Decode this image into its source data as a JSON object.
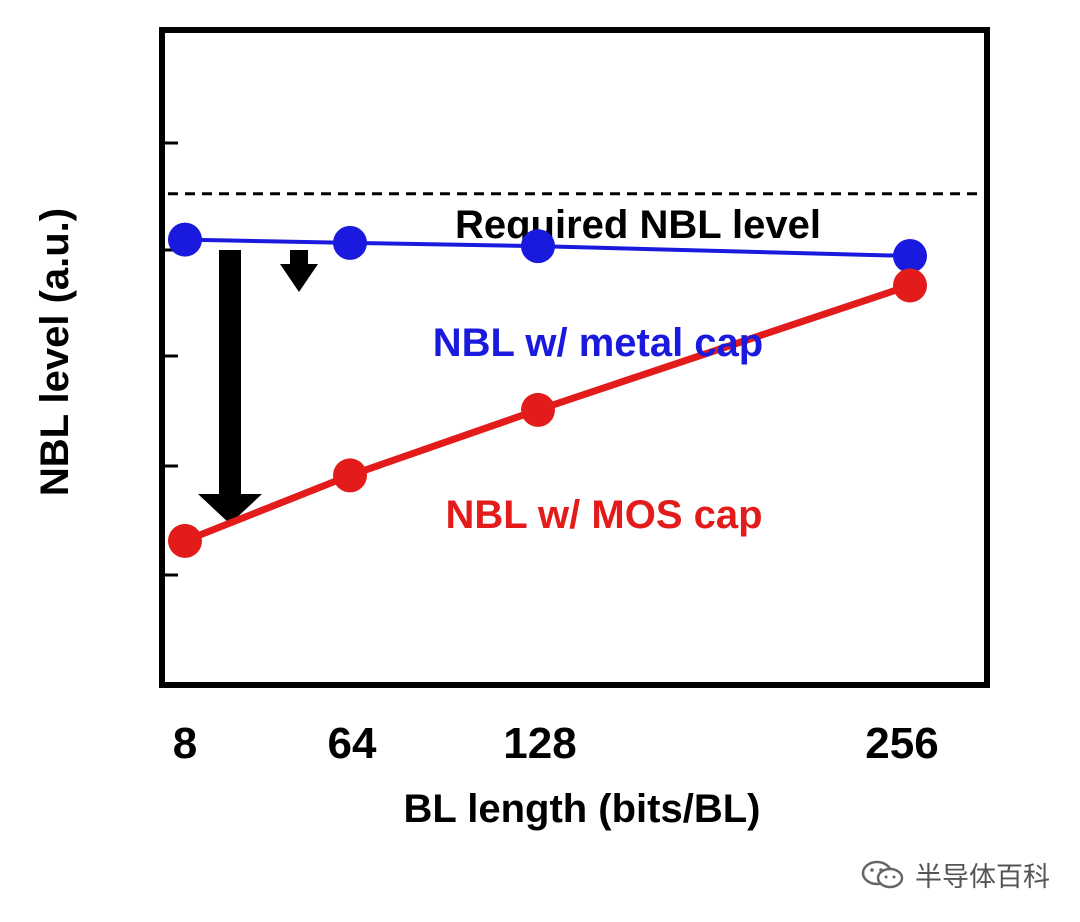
{
  "chart_data": {
    "type": "line",
    "title": "",
    "xlabel": "BL length (bits/BL)",
    "ylabel": "NBL level (a.u.)",
    "categories": [
      "8",
      "64",
      "128",
      "256"
    ],
    "x": [
      8,
      64,
      128,
      256
    ],
    "xlim": [
      8,
      256
    ],
    "ylim": [
      0,
      1
    ],
    "y_tick_labels_shown": false,
    "series": [
      {
        "name": "NBL w/ metal cap",
        "color": "#1a1adf",
        "values": [
          0.68,
          0.675,
          0.67,
          0.655
        ]
      },
      {
        "name": "NBL w/ MOS cap",
        "color": "#e31b1b",
        "values": [
          0.22,
          0.32,
          0.42,
          0.61
        ]
      }
    ],
    "reference_line": {
      "label": "Required NBL level",
      "value": 0.75,
      "style": "dashed",
      "color": "#000000"
    },
    "annotations": [
      {
        "kind": "down-arrow",
        "from_series": "reference",
        "to_series": "NBL w/ MOS cap",
        "near_x": 8
      },
      {
        "kind": "down-arrow",
        "from_series": "reference",
        "to_series": "NBL w/ metal cap",
        "near_x": 64
      }
    ],
    "grid": false,
    "legend": "inline-labels"
  },
  "watermark": {
    "text": "半导体百科",
    "icon": "wechat-icon"
  }
}
